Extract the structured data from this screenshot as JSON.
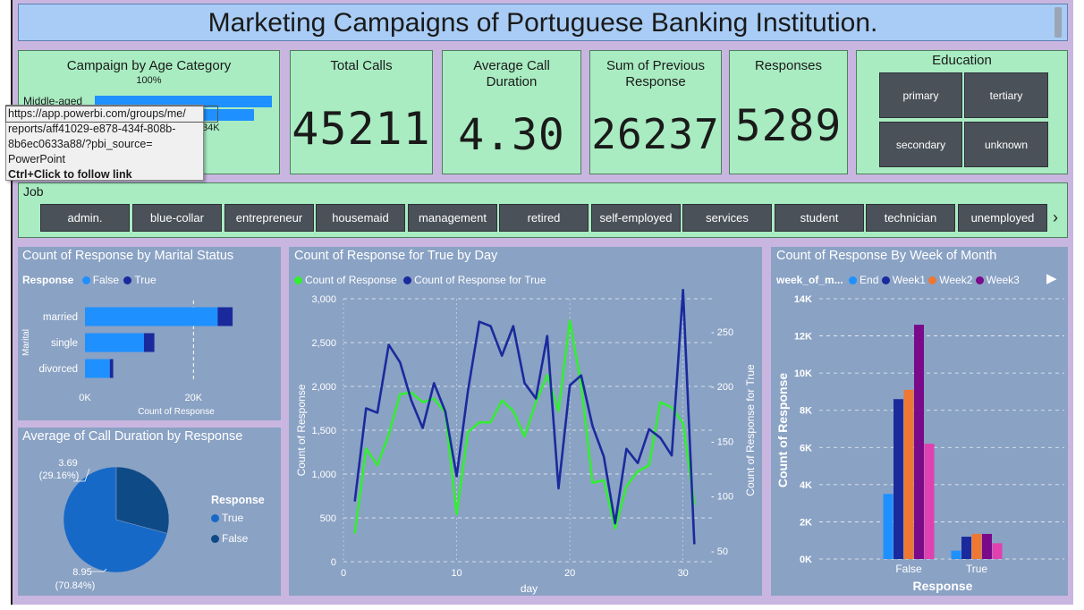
{
  "title": "Marketing Campaigns of Portuguese Banking Institution.",
  "age_card": {
    "title": "Campaign by Age Category",
    "percent_label": "100%",
    "top_label": "Middle-aged",
    "bar_value_label": "34K",
    "bars": [
      {
        "category": "Middle-aged",
        "fraction": 1.0
      },
      {
        "category": "",
        "fraction": 0.9
      }
    ]
  },
  "kpis": {
    "total_calls": {
      "title": "Total Calls",
      "value": "45211"
    },
    "avg_call_duration": {
      "title": "Average Call Duration",
      "value": "4.30"
    },
    "sum_prev_response": {
      "title": "Sum of Previous Response",
      "value": "26237"
    },
    "responses": {
      "title": "Responses",
      "value": "5289"
    }
  },
  "education": {
    "title": "Education",
    "options": [
      "primary",
      "tertiary",
      "secondary",
      "unknown"
    ]
  },
  "job": {
    "title": "Job",
    "options": [
      "admin.",
      "blue-collar",
      "entrepreneur",
      "housemaid",
      "management",
      "retired",
      "self-employed",
      "services",
      "student",
      "technician",
      "unemployed"
    ],
    "next_icon": "chevron-right-icon"
  },
  "tooltip": {
    "url": "https://app.powerbi.com/groups/me/\nreports/aff41029-e878-434f-808b-\n8b6ec0633a88/?pbi_source=\nPowerPoint",
    "hint": "Ctrl+Click to follow link"
  },
  "colors": {
    "false_blue": "#1e90ff",
    "true_navy": "#1a2a9c",
    "green_line": "#33ee33",
    "week2_orange": "#ee7733",
    "week3_purple": "#7a0a8a",
    "pink": "#e040b0"
  },
  "chart_data": [
    {
      "type": "bar",
      "title": "Count of Response by Marital Status",
      "orientation": "horizontal-stacked",
      "legend_title": "Response",
      "legend": [
        "False",
        "True"
      ],
      "ylabel": "Marital",
      "xlabel": "Count of Response",
      "categories": [
        "married",
        "single",
        "divorced"
      ],
      "series": [
        {
          "name": "False",
          "values": [
            24459,
            10878,
            4585
          ]
        },
        {
          "name": "True",
          "values": [
            2755,
            1912,
            622
          ]
        }
      ],
      "x_ticks": [
        "0K",
        "20K"
      ],
      "xlim": [
        0,
        30000
      ]
    },
    {
      "type": "pie",
      "title": "Average of Call Duration by Response",
      "legend_title": "Response",
      "legend": [
        "True",
        "False"
      ],
      "slices": [
        {
          "name": "True",
          "value": 8.95,
          "label": "8.95",
          "pct_label": "(70.84%)"
        },
        {
          "name": "False",
          "value": 3.69,
          "label": "3.69",
          "pct_label": "(29.16%)"
        }
      ]
    },
    {
      "type": "line",
      "title": "Count of Response for True by Day",
      "legend": [
        "Count of Response",
        "Count of Response for True"
      ],
      "xlabel": "day",
      "ylabel": "Count of Response",
      "y2label": "Count of Response for True",
      "x": [
        1,
        2,
        3,
        4,
        5,
        6,
        7,
        8,
        9,
        10,
        11,
        12,
        13,
        14,
        15,
        16,
        17,
        18,
        19,
        20,
        21,
        22,
        23,
        24,
        25,
        26,
        27,
        28,
        29,
        30,
        31
      ],
      "series": [
        {
          "name": "Count of Response",
          "axis": "left",
          "values": [
            320,
            1290,
            1100,
            1450,
            1910,
            1930,
            1820,
            1860,
            1700,
            540,
            1480,
            1590,
            1590,
            1840,
            1720,
            1430,
            1820,
            2130,
            1720,
            2750,
            2020,
            900,
            930,
            380,
            860,
            1030,
            1100,
            1820,
            1760,
            1580,
            650
          ]
        },
        {
          "name": "Count of Response for True",
          "axis": "right",
          "values": [
            95,
            180,
            176,
            238,
            222,
            187,
            162,
            203,
            177,
            118,
            196,
            259,
            255,
            228,
            255,
            203,
            189,
            246,
            107,
            201,
            210,
            164,
            136,
            75,
            143,
            130,
            161,
            153,
            137,
            288,
            56
          ]
        }
      ],
      "x_ticks": [
        0,
        10,
        20,
        30
      ],
      "y_ticks": [
        "0",
        "500",
        "1,000",
        "1,500",
        "2,000",
        "2,500",
        "3,000"
      ],
      "y2_ticks": [
        "50",
        "100",
        "150",
        "200",
        "250"
      ],
      "xlim": [
        0,
        32
      ],
      "ylim": [
        0,
        3000
      ],
      "y2lim": [
        40,
        280
      ]
    },
    {
      "type": "bar",
      "title": "Count of Response By Week of Month",
      "legend_title": "week_of_m...",
      "legend": [
        "End",
        "Week1",
        "Week2",
        "Week3"
      ],
      "xlabel": "Response",
      "ylabel": "Count of Response",
      "categories": [
        "False",
        "True"
      ],
      "series": [
        {
          "name": "End",
          "values": [
            3500,
            450
          ]
        },
        {
          "name": "Week1",
          "values": [
            8600,
            1200
          ]
        },
        {
          "name": "Week2",
          "values": [
            9100,
            1350
          ]
        },
        {
          "name": "Week3",
          "values": [
            12600,
            1350
          ]
        },
        {
          "name": "",
          "values": [
            6200,
            850
          ]
        }
      ],
      "y_ticks": [
        "0K",
        "2K",
        "4K",
        "6K",
        "8K",
        "10K",
        "12K",
        "14K"
      ],
      "ylim": [
        0,
        14000
      ]
    }
  ]
}
